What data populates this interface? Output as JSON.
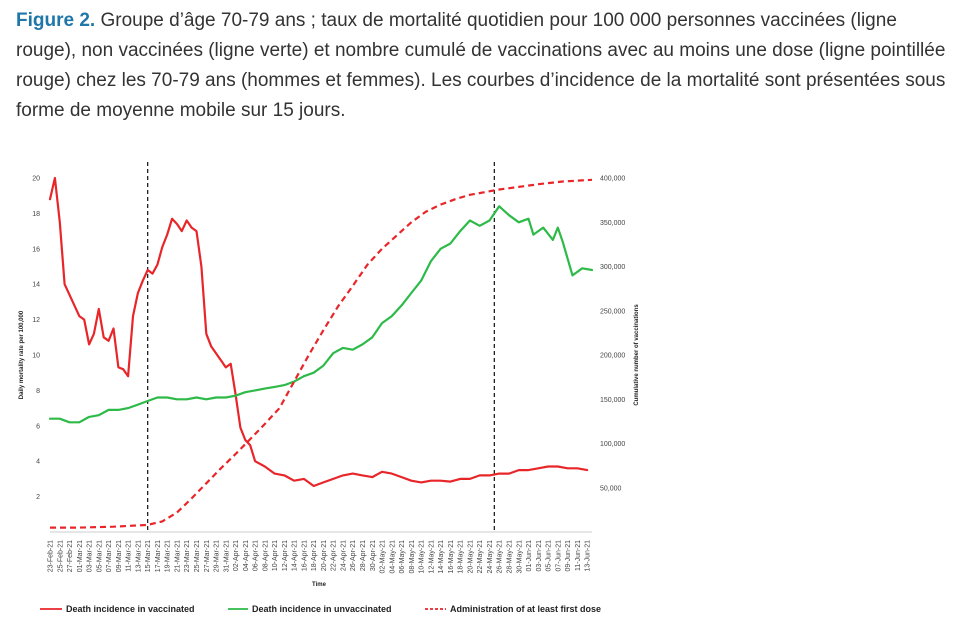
{
  "caption": {
    "label": "Figure 2.",
    "text": "Groupe d’âge 70-79 ans ; taux de mortalité quotidien pour 100 000 personnes vaccinées (ligne rouge), non vaccinées (ligne verte) et nombre cumulé de vaccinations avec au moins une dose (ligne pointillée rouge) chez les 70-79 ans (hommes et femmes). Les courbes d’incidence de la mortalité sont présentées sous forme de moyenne mobile sur 15 jours."
  },
  "chart_data": {
    "type": "line",
    "xlabel": "Time",
    "ylabel": "Daily mortality rate per 100,000",
    "y2label": "Cumulative number of vaccinations",
    "ylim": [
      0,
      20
    ],
    "y2lim": [
      0,
      400000
    ],
    "yticks": [
      "2",
      "4",
      "6",
      "8",
      "10",
      "12",
      "14",
      "16",
      "18",
      "20"
    ],
    "y2ticks": [
      "50,000",
      "100,000",
      "150,000",
      "200,000",
      "250,000",
      "300,000",
      "350,000",
      "400,000"
    ],
    "x_start": "2021-02-23",
    "x_end": "2021-06-14",
    "categories": [
      "23-Feb-21",
      "25-Feb-21",
      "27-Feb-21",
      "01-Mar-21",
      "03-Mar-21",
      "05-Mar-21",
      "07-Mar-21",
      "09-Mar-21",
      "11-Mar-21",
      "13-Mar-21",
      "15-Mar-21",
      "17-Mar-21",
      "19-Mar-21",
      "21-Mar-21",
      "23-Mar-21",
      "25-Mar-21",
      "27-Mar-21",
      "29-Mar-21",
      "31-Mar-21",
      "02-Apr-21",
      "04-Apr-21",
      "06-Apr-21",
      "08-Apr-21",
      "10-Apr-21",
      "12-Apr-21",
      "14-Apr-21",
      "16-Apr-21",
      "18-Apr-21",
      "20-Apr-21",
      "22-Apr-21",
      "24-Apr-21",
      "26-Apr-21",
      "28-Apr-21",
      "30-Apr-21",
      "02-May-21",
      "04-May-21",
      "06-May-21",
      "08-May-21",
      "10-May-21",
      "12-May-21",
      "14-May-21",
      "16-May-21",
      "18-May-21",
      "20-May-21",
      "22-May-21",
      "24-May-21",
      "26-May-21",
      "28-May-21",
      "30-May-21",
      "01-Jun-21",
      "03-Jun-21",
      "05-Jun-21",
      "07-Jun-21",
      "09-Jun-21",
      "11-Jun-21",
      "13-Jun-21"
    ],
    "vertical_lines": [
      "2021-03-15",
      "2021-05-25"
    ],
    "legend_position": "bottom",
    "series": [
      {
        "name": "Death incidence in vaccinated",
        "axis": "left",
        "color": "#e8262a",
        "style": "solid",
        "points": [
          [
            "2021-02-23",
            18.8
          ],
          [
            "2021-02-24",
            20.0
          ],
          [
            "2021-02-25",
            17.5
          ],
          [
            "2021-02-26",
            14.0
          ],
          [
            "2021-02-28",
            12.8
          ],
          [
            "2021-03-01",
            12.2
          ],
          [
            "2021-03-02",
            12.0
          ],
          [
            "2021-03-03",
            10.6
          ],
          [
            "2021-03-04",
            11.2
          ],
          [
            "2021-03-05",
            12.6
          ],
          [
            "2021-03-06",
            11.0
          ],
          [
            "2021-03-07",
            10.8
          ],
          [
            "2021-03-08",
            11.5
          ],
          [
            "2021-03-09",
            9.3
          ],
          [
            "2021-03-10",
            9.2
          ],
          [
            "2021-03-11",
            8.8
          ],
          [
            "2021-03-12",
            12.2
          ],
          [
            "2021-03-13",
            13.5
          ],
          [
            "2021-03-14",
            14.2
          ],
          [
            "2021-03-15",
            14.8
          ],
          [
            "2021-03-16",
            14.6
          ],
          [
            "2021-03-17",
            15.1
          ],
          [
            "2021-03-18",
            16.1
          ],
          [
            "2021-03-19",
            16.8
          ],
          [
            "2021-03-20",
            17.7
          ],
          [
            "2021-03-21",
            17.4
          ],
          [
            "2021-03-22",
            17.0
          ],
          [
            "2021-03-23",
            17.6
          ],
          [
            "2021-03-24",
            17.2
          ],
          [
            "2021-03-25",
            17.0
          ],
          [
            "2021-03-26",
            15.0
          ],
          [
            "2021-03-27",
            11.2
          ],
          [
            "2021-03-28",
            10.5
          ],
          [
            "2021-03-29",
            10.1
          ],
          [
            "2021-03-30",
            9.7
          ],
          [
            "2021-03-31",
            9.3
          ],
          [
            "2021-04-01",
            9.5
          ],
          [
            "2021-04-02",
            7.8
          ],
          [
            "2021-04-03",
            5.9
          ],
          [
            "2021-04-04",
            5.2
          ],
          [
            "2021-04-05",
            4.9
          ],
          [
            "2021-04-06",
            4.0
          ],
          [
            "2021-04-08",
            3.7
          ],
          [
            "2021-04-10",
            3.3
          ],
          [
            "2021-04-12",
            3.2
          ],
          [
            "2021-04-14",
            2.9
          ],
          [
            "2021-04-16",
            3.0
          ],
          [
            "2021-04-18",
            2.6
          ],
          [
            "2021-04-20",
            2.8
          ],
          [
            "2021-04-22",
            3.0
          ],
          [
            "2021-04-24",
            3.2
          ],
          [
            "2021-04-26",
            3.3
          ],
          [
            "2021-04-28",
            3.2
          ],
          [
            "2021-04-30",
            3.1
          ],
          [
            "2021-05-02",
            3.4
          ],
          [
            "2021-05-04",
            3.3
          ],
          [
            "2021-05-06",
            3.1
          ],
          [
            "2021-05-08",
            2.9
          ],
          [
            "2021-05-10",
            2.8
          ],
          [
            "2021-05-12",
            2.9
          ],
          [
            "2021-05-14",
            2.9
          ],
          [
            "2021-05-16",
            2.85
          ],
          [
            "2021-05-18",
            3.0
          ],
          [
            "2021-05-20",
            3.0
          ],
          [
            "2021-05-22",
            3.2
          ],
          [
            "2021-05-24",
            3.2
          ],
          [
            "2021-05-26",
            3.3
          ],
          [
            "2021-05-28",
            3.3
          ],
          [
            "2021-05-30",
            3.5
          ],
          [
            "2021-06-01",
            3.5
          ],
          [
            "2021-06-03",
            3.6
          ],
          [
            "2021-06-05",
            3.7
          ],
          [
            "2021-06-07",
            3.7
          ],
          [
            "2021-06-09",
            3.6
          ],
          [
            "2021-06-11",
            3.6
          ],
          [
            "2021-06-13",
            3.5
          ]
        ]
      },
      {
        "name": "Death incidence in unvaccinated",
        "axis": "left",
        "color": "#2dba48",
        "style": "solid",
        "points": [
          [
            "2021-02-23",
            6.4
          ],
          [
            "2021-02-25",
            6.4
          ],
          [
            "2021-02-27",
            6.2
          ],
          [
            "2021-03-01",
            6.2
          ],
          [
            "2021-03-03",
            6.5
          ],
          [
            "2021-03-05",
            6.6
          ],
          [
            "2021-03-07",
            6.9
          ],
          [
            "2021-03-09",
            6.9
          ],
          [
            "2021-03-11",
            7.0
          ],
          [
            "2021-03-13",
            7.2
          ],
          [
            "2021-03-15",
            7.4
          ],
          [
            "2021-03-17",
            7.6
          ],
          [
            "2021-03-19",
            7.6
          ],
          [
            "2021-03-21",
            7.5
          ],
          [
            "2021-03-23",
            7.5
          ],
          [
            "2021-03-25",
            7.6
          ],
          [
            "2021-03-27",
            7.5
          ],
          [
            "2021-03-29",
            7.6
          ],
          [
            "2021-03-31",
            7.6
          ],
          [
            "2021-04-02",
            7.7
          ],
          [
            "2021-04-04",
            7.9
          ],
          [
            "2021-04-06",
            8.0
          ],
          [
            "2021-04-08",
            8.1
          ],
          [
            "2021-04-10",
            8.2
          ],
          [
            "2021-04-12",
            8.3
          ],
          [
            "2021-04-14",
            8.5
          ],
          [
            "2021-04-16",
            8.8
          ],
          [
            "2021-04-18",
            9.0
          ],
          [
            "2021-04-20",
            9.4
          ],
          [
            "2021-04-22",
            10.1
          ],
          [
            "2021-04-24",
            10.4
          ],
          [
            "2021-04-26",
            10.3
          ],
          [
            "2021-04-28",
            10.6
          ],
          [
            "2021-04-30",
            11.0
          ],
          [
            "2021-05-02",
            11.8
          ],
          [
            "2021-05-04",
            12.2
          ],
          [
            "2021-05-06",
            12.8
          ],
          [
            "2021-05-08",
            13.5
          ],
          [
            "2021-05-10",
            14.2
          ],
          [
            "2021-05-12",
            15.3
          ],
          [
            "2021-05-14",
            16.0
          ],
          [
            "2021-05-16",
            16.3
          ],
          [
            "2021-05-18",
            17.0
          ],
          [
            "2021-05-20",
            17.6
          ],
          [
            "2021-05-22",
            17.3
          ],
          [
            "2021-05-24",
            17.6
          ],
          [
            "2021-05-26",
            18.4
          ],
          [
            "2021-05-28",
            17.9
          ],
          [
            "2021-05-30",
            17.5
          ],
          [
            "2021-06-01",
            17.7
          ],
          [
            "2021-06-02",
            16.8
          ],
          [
            "2021-06-04",
            17.2
          ],
          [
            "2021-06-06",
            16.5
          ],
          [
            "2021-06-07",
            17.2
          ],
          [
            "2021-06-08",
            16.4
          ],
          [
            "2021-06-10",
            14.5
          ],
          [
            "2021-06-12",
            14.9
          ],
          [
            "2021-06-14",
            14.8
          ]
        ]
      },
      {
        "name": "Administration of at least first dose",
        "axis": "right",
        "color": "#e8262a",
        "style": "dashed",
        "points": [
          [
            "2021-02-23",
            5000
          ],
          [
            "2021-03-01",
            5000
          ],
          [
            "2021-03-08",
            6000
          ],
          [
            "2021-03-15",
            8000
          ],
          [
            "2021-03-18",
            12000
          ],
          [
            "2021-03-21",
            22000
          ],
          [
            "2021-03-24",
            38000
          ],
          [
            "2021-03-27",
            55000
          ],
          [
            "2021-03-30",
            72000
          ],
          [
            "2021-04-02",
            88000
          ],
          [
            "2021-04-05",
            105000
          ],
          [
            "2021-04-08",
            122000
          ],
          [
            "2021-04-11",
            140000
          ],
          [
            "2021-04-14",
            170000
          ],
          [
            "2021-04-17",
            200000
          ],
          [
            "2021-04-20",
            228000
          ],
          [
            "2021-04-23",
            255000
          ],
          [
            "2021-04-26",
            278000
          ],
          [
            "2021-04-29",
            302000
          ],
          [
            "2021-05-02",
            320000
          ],
          [
            "2021-05-05",
            335000
          ],
          [
            "2021-05-08",
            350000
          ],
          [
            "2021-05-11",
            362000
          ],
          [
            "2021-05-14",
            370000
          ],
          [
            "2021-05-17",
            376000
          ],
          [
            "2021-05-20",
            381000
          ],
          [
            "2021-05-23",
            384000
          ],
          [
            "2021-05-26",
            387000
          ],
          [
            "2021-05-30",
            390000
          ],
          [
            "2021-06-03",
            393000
          ],
          [
            "2021-06-08",
            396000
          ],
          [
            "2021-06-14",
            398000
          ]
        ]
      }
    ]
  }
}
